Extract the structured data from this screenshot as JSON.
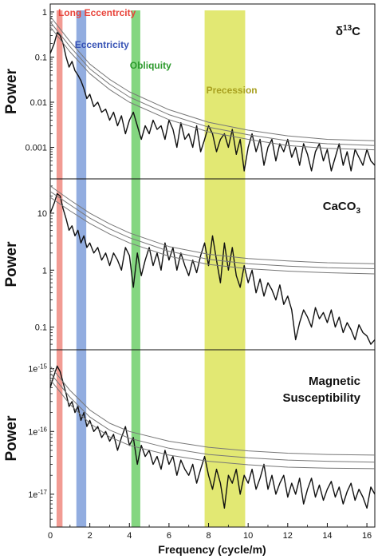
{
  "chart_data": [
    {
      "type": "line",
      "title": "δ13C",
      "title_parts": {
        "base": "δ",
        "sup": "13",
        "rest": "C"
      },
      "ylabel": "Power",
      "yscale": "log",
      "xlim": [
        0,
        16.4
      ],
      "ylim": [
        0.0002,
        1.5
      ],
      "yticks": [
        0.001,
        0.01,
        0.1,
        1
      ],
      "yticklabels": [
        "0.001",
        "0.01",
        "0.1",
        "1"
      ],
      "series": [
        {
          "role": "spectrum",
          "color": "#111111",
          "x": [
            0.0,
            0.2,
            0.35,
            0.5,
            0.65,
            0.8,
            0.95,
            1.1,
            1.25,
            1.4,
            1.55,
            1.7,
            1.85,
            2.0,
            2.2,
            2.4,
            2.6,
            2.8,
            3.0,
            3.2,
            3.4,
            3.6,
            3.8,
            4.0,
            4.2,
            4.4,
            4.6,
            4.8,
            5.0,
            5.2,
            5.4,
            5.6,
            5.8,
            6.0,
            6.2,
            6.4,
            6.6,
            6.8,
            7.0,
            7.2,
            7.4,
            7.6,
            7.8,
            8.0,
            8.2,
            8.4,
            8.6,
            8.8,
            9.0,
            9.2,
            9.4,
            9.6,
            9.8,
            10.0,
            10.2,
            10.4,
            10.6,
            10.8,
            11.0,
            11.2,
            11.4,
            11.6,
            11.8,
            12.0,
            12.2,
            12.4,
            12.6,
            12.8,
            13.0,
            13.2,
            13.4,
            13.6,
            13.8,
            14.0,
            14.2,
            14.4,
            14.6,
            14.8,
            15.0,
            15.2,
            15.4,
            15.6,
            15.8,
            16.0,
            16.2,
            16.4
          ],
          "y": [
            0.12,
            0.2,
            0.35,
            0.3,
            0.2,
            0.1,
            0.06,
            0.08,
            0.05,
            0.04,
            0.03,
            0.02,
            0.012,
            0.015,
            0.008,
            0.01,
            0.006,
            0.007,
            0.004,
            0.006,
            0.003,
            0.005,
            0.002,
            0.004,
            0.006,
            0.003,
            0.0015,
            0.003,
            0.002,
            0.004,
            0.0025,
            0.003,
            0.0015,
            0.004,
            0.0025,
            0.001,
            0.0035,
            0.0015,
            0.002,
            0.001,
            0.003,
            0.0008,
            0.0015,
            0.003,
            0.002,
            0.0008,
            0.0015,
            0.002,
            0.001,
            0.0025,
            0.0007,
            0.0015,
            0.0003,
            0.001,
            0.002,
            0.0008,
            0.0015,
            0.0004,
            0.001,
            0.0015,
            0.0005,
            0.0012,
            0.0008,
            0.0015,
            0.0006,
            0.001,
            0.0004,
            0.0012,
            0.0007,
            0.0003,
            0.0008,
            0.0012,
            0.0005,
            0.0009,
            0.0003,
            0.0006,
            0.0012,
            0.0004,
            0.0008,
            0.0003,
            0.0009,
            0.0006,
            0.0004,
            0.0009,
            0.0005,
            0.0004
          ]
        },
        {
          "role": "confidence-1",
          "color": "#777777",
          "x": [
            0.0,
            1,
            2,
            3,
            4,
            6,
            8,
            10,
            12,
            14,
            16.4
          ],
          "y": [
            0.8,
            0.22,
            0.07,
            0.032,
            0.017,
            0.0068,
            0.0036,
            0.0024,
            0.0018,
            0.0015,
            0.0014
          ]
        },
        {
          "role": "confidence-2",
          "color": "#777777",
          "x": [
            0.0,
            1,
            2,
            3,
            4,
            6,
            8,
            10,
            12,
            14,
            16.4
          ],
          "y": [
            0.6,
            0.17,
            0.055,
            0.025,
            0.013,
            0.0053,
            0.0028,
            0.0019,
            0.0014,
            0.0012,
            0.0011
          ]
        },
        {
          "role": "confidence-3",
          "color": "#777777",
          "x": [
            0.0,
            1,
            2,
            3,
            4,
            6,
            8,
            10,
            12,
            14,
            16.4
          ],
          "y": [
            0.47,
            0.13,
            0.043,
            0.019,
            0.01,
            0.0041,
            0.0022,
            0.0015,
            0.0011,
            0.00095,
            0.00088
          ]
        }
      ]
    },
    {
      "type": "line",
      "title": "CaCO3",
      "title_parts": {
        "base": "CaCO",
        "sub": "3"
      },
      "ylabel": "Power",
      "yscale": "log",
      "xlim": [
        0,
        16.4
      ],
      "ylim": [
        0.04,
        40
      ],
      "yticks": [
        0.1,
        1,
        10
      ],
      "yticklabels": [
        "0.1",
        "1",
        "10"
      ],
      "series": [
        {
          "role": "spectrum",
          "color": "#111111",
          "x": [
            0.0,
            0.2,
            0.35,
            0.5,
            0.65,
            0.8,
            0.95,
            1.1,
            1.25,
            1.4,
            1.55,
            1.7,
            1.85,
            2.0,
            2.2,
            2.4,
            2.6,
            2.8,
            3.0,
            3.2,
            3.4,
            3.6,
            3.8,
            4.0,
            4.2,
            4.4,
            4.6,
            4.8,
            5.0,
            5.2,
            5.4,
            5.6,
            5.8,
            6.0,
            6.2,
            6.4,
            6.6,
            6.8,
            7.0,
            7.2,
            7.4,
            7.6,
            7.8,
            8.0,
            8.2,
            8.4,
            8.6,
            8.8,
            9.0,
            9.2,
            9.4,
            9.6,
            9.8,
            10.0,
            10.2,
            10.4,
            10.6,
            10.8,
            11.0,
            11.2,
            11.4,
            11.6,
            11.8,
            12.0,
            12.2,
            12.4,
            12.6,
            12.8,
            13.0,
            13.2,
            13.4,
            13.6,
            13.8,
            14.0,
            14.2,
            14.4,
            14.6,
            14.8,
            15.0,
            15.2,
            15.4,
            15.6,
            15.8,
            16.0,
            16.2,
            16.4
          ],
          "y": [
            10,
            15,
            22,
            20,
            12,
            8,
            5,
            6,
            4,
            5,
            3,
            4,
            2.5,
            3,
            2,
            2.5,
            1.5,
            2,
            1.2,
            2,
            1.5,
            1,
            2.5,
            1.8,
            0.5,
            2,
            0.8,
            1.5,
            2.5,
            1.2,
            2,
            1,
            3,
            1.5,
            2.5,
            1,
            2,
            1.2,
            0.8,
            1.5,
            0.9,
            1.8,
            3,
            1.2,
            4,
            1.5,
            0.6,
            3,
            1,
            2.5,
            0.8,
            0.5,
            1.2,
            0.6,
            1,
            0.4,
            0.7,
            0.35,
            0.6,
            0.45,
            0.3,
            0.55,
            0.25,
            0.35,
            0.2,
            0.06,
            0.12,
            0.2,
            0.15,
            0.1,
            0.22,
            0.14,
            0.18,
            0.12,
            0.2,
            0.1,
            0.15,
            0.08,
            0.12,
            0.09,
            0.06,
            0.11,
            0.08,
            0.07,
            0.05,
            0.06
          ]
        },
        {
          "role": "confidence-1",
          "color": "#777777",
          "x": [
            0.0,
            1,
            2,
            3,
            4,
            6,
            8,
            10,
            12,
            14,
            16.4
          ],
          "y": [
            30,
            17,
            10,
            6.5,
            4.5,
            2.6,
            1.9,
            1.6,
            1.45,
            1.35,
            1.3
          ]
        },
        {
          "role": "confidence-2",
          "color": "#777777",
          "x": [
            0.0,
            1,
            2,
            3,
            4,
            6,
            8,
            10,
            12,
            14,
            16.4
          ],
          "y": [
            24,
            14,
            8.2,
            5.3,
            3.7,
            2.15,
            1.55,
            1.3,
            1.18,
            1.1,
            1.06
          ]
        },
        {
          "role": "confidence-3",
          "color": "#777777",
          "x": [
            0.0,
            1,
            2,
            3,
            4,
            6,
            8,
            10,
            12,
            14,
            16.4
          ],
          "y": [
            19,
            11,
            6.6,
            4.3,
            3,
            1.75,
            1.26,
            1.06,
            0.96,
            0.9,
            0.86
          ]
        }
      ]
    },
    {
      "type": "line",
      "title": "Magnetic Susceptibility",
      "title_lines": [
        "Magnetic",
        "Susceptibility"
      ],
      "ylabel": "Power",
      "yscale": "log",
      "xlim": [
        0,
        16.4
      ],
      "ylim": [
        3e-18,
        2e-15
      ],
      "yticks": [
        1e-17,
        1e-16,
        1e-15
      ],
      "yticklabels": [
        "1e-17",
        "1e-16",
        "1e-15"
      ],
      "series": [
        {
          "role": "spectrum",
          "color": "#111111",
          "x": [
            0.0,
            0.2,
            0.35,
            0.5,
            0.65,
            0.8,
            0.95,
            1.1,
            1.25,
            1.4,
            1.55,
            1.7,
            1.85,
            2.0,
            2.2,
            2.4,
            2.6,
            2.8,
            3.0,
            3.2,
            3.4,
            3.6,
            3.8,
            4.0,
            4.2,
            4.4,
            4.6,
            4.8,
            5.0,
            5.2,
            5.4,
            5.6,
            5.8,
            6.0,
            6.2,
            6.4,
            6.6,
            6.8,
            7.0,
            7.2,
            7.4,
            7.6,
            7.8,
            8.0,
            8.2,
            8.4,
            8.6,
            8.8,
            9.0,
            9.2,
            9.4,
            9.6,
            9.8,
            10.0,
            10.2,
            10.4,
            10.6,
            10.8,
            11.0,
            11.2,
            11.4,
            11.6,
            11.8,
            12.0,
            12.2,
            12.4,
            12.6,
            12.8,
            13.0,
            13.2,
            13.4,
            13.6,
            13.8,
            14.0,
            14.2,
            14.4,
            14.6,
            14.8,
            15.0,
            15.2,
            15.4,
            15.6,
            15.8,
            16.0,
            16.2,
            16.4
          ],
          "y": [
            5e-16,
            8e-16,
            1.1e-15,
            9e-16,
            6e-16,
            4e-16,
            2.5e-16,
            3e-16,
            2e-16,
            2.5e-16,
            1.5e-16,
            2e-16,
            1.2e-16,
            1.5e-16,
            1e-16,
            1.2e-16,
            8e-17,
            1e-16,
            7e-17,
            9e-17,
            5e-17,
            8e-17,
            1.2e-16,
            6e-17,
            8e-17,
            3e-17,
            6e-17,
            4e-17,
            5e-17,
            3e-17,
            4e-17,
            2.5e-17,
            5e-17,
            3e-17,
            4e-17,
            2e-17,
            3.5e-17,
            2.5e-17,
            2e-17,
            3e-17,
            1.5e-17,
            2.5e-17,
            4e-17,
            2e-17,
            1.2e-17,
            2.5e-17,
            1.5e-17,
            6e-18,
            2e-17,
            1.5e-17,
            2.5e-17,
            1e-17,
            2e-17,
            1.5e-17,
            2.5e-17,
            1.2e-17,
            1.8e-17,
            3e-17,
            1.2e-17,
            2e-17,
            1e-17,
            1.5e-17,
            2e-17,
            9e-18,
            1.5e-17,
            1e-17,
            1.8e-17,
            7e-18,
            1.2e-17,
            1.8e-17,
            9e-18,
            1.4e-17,
            8e-18,
            1.2e-17,
            1.6e-17,
            9e-18,
            1.3e-17,
            7e-18,
            1.1e-17,
            1.5e-17,
            8e-18,
            1.2e-17,
            9e-18,
            6e-18,
            1.3e-17,
            1e-17
          ]
        },
        {
          "role": "confidence-1",
          "color": "#777777",
          "x": [
            0.0,
            1,
            2,
            3,
            4,
            6,
            8,
            10,
            12,
            14,
            16.4
          ],
          "y": [
            1.1e-15,
            4.5e-16,
            2.2e-16,
            1.35e-16,
            1e-16,
            7e-17,
            5.6e-17,
            4.9e-17,
            4.5e-17,
            4.3e-17,
            4.2e-17
          ]
        },
        {
          "role": "confidence-2",
          "color": "#777777",
          "x": [
            0.0,
            1,
            2,
            3,
            4,
            6,
            8,
            10,
            12,
            14,
            16.4
          ],
          "y": [
            8.5e-16,
            3.5e-16,
            1.7e-16,
            1.05e-16,
            7.8e-17,
            5.4e-17,
            4.3e-17,
            3.8e-17,
            3.5e-17,
            3.35e-17,
            3.25e-17
          ]
        },
        {
          "role": "confidence-3",
          "color": "#777777",
          "x": [
            0.0,
            1,
            2,
            3,
            4,
            6,
            8,
            10,
            12,
            14,
            16.4
          ],
          "y": [
            6.7e-16,
            2.7e-16,
            1.35e-16,
            8.2e-17,
            6e-17,
            4.2e-17,
            3.35e-17,
            2.95e-17,
            2.7e-17,
            2.6e-17,
            2.55e-17
          ]
        }
      ]
    }
  ],
  "bands": [
    {
      "label": "Long Eccentrcity",
      "x0": 0.32,
      "x1": 0.62,
      "color": "#f08a80",
      "label_color": "#e8433a"
    },
    {
      "label": "Eccentricity",
      "x0": 1.32,
      "x1": 1.82,
      "color": "#7f9fdb",
      "label_color": "#3853b5"
    },
    {
      "label": "Obliquity",
      "x0": 4.1,
      "x1": 4.55,
      "color": "#6fcf6a",
      "label_color": "#2e9b2e"
    },
    {
      "label": "Precession",
      "x0": 7.8,
      "x1": 9.85,
      "color": "#dde45a",
      "label_color": "#a8a020"
    }
  ],
  "x_axis": {
    "label": "Frequency (cycle/m)",
    "ticks": [
      0,
      2,
      4,
      6,
      8,
      10,
      12,
      14,
      16
    ],
    "ticklabels": [
      "0",
      "2",
      "4",
      "6",
      "8",
      "10",
      "12",
      "14",
      "16"
    ]
  }
}
